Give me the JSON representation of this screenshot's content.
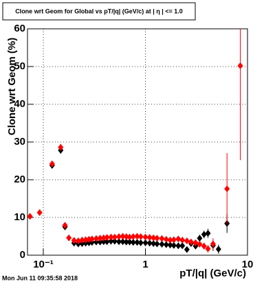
{
  "chart_data": {
    "type": "scatter",
    "title": "Clone wrt Geom for Global vs pT/|q| (GeV/c) at | η | <= 1.0",
    "x_label": "pT/|q| (GeV/c)",
    "y_label": "Clone wrt Geom (%)",
    "timestamp": "Mon Jun 11 09:35:58 2018",
    "x": [
      0.074,
      0.092,
      0.122,
      0.148,
      0.163,
      0.178,
      0.2,
      0.22,
      0.24,
      0.26,
      0.28,
      0.3,
      0.33,
      0.36,
      0.39,
      0.42,
      0.46,
      0.5,
      0.55,
      0.6,
      0.65,
      0.7,
      0.76,
      0.83,
      0.9,
      1.0,
      1.1,
      1.2,
      1.3,
      1.45,
      1.6,
      1.75,
      1.9,
      2.1,
      2.3,
      2.55,
      2.8,
      3.1,
      3.4,
      3.75,
      4.1,
      4.6,
      5.2,
      6.3,
      8.5
    ],
    "series": [
      {
        "color": "#000000",
        "values": [
          null,
          null,
          23.8,
          27.8,
          7.5,
          null,
          3.2,
          3.0,
          3.1,
          3.2,
          3.3,
          3.4,
          3.5,
          3.5,
          3.6,
          3.6,
          3.7,
          3.7,
          3.6,
          3.6,
          3.5,
          3.5,
          3.4,
          3.4,
          3.3,
          3.3,
          3.2,
          3.1,
          3.0,
          2.9,
          2.8,
          2.7,
          2.6,
          2.5,
          2.5,
          1.5,
          3.1,
          2.4,
          4.5,
          5.5,
          5.8,
          2.6,
          1.6,
          8.4,
          null
        ],
        "errors": [
          null,
          null,
          0.8,
          0.9,
          0.6,
          null,
          0.3,
          0.3,
          0.3,
          0.3,
          0.3,
          0.3,
          0.3,
          0.3,
          0.3,
          0.3,
          0.3,
          0.3,
          0.3,
          0.3,
          0.3,
          0.3,
          0.3,
          0.3,
          0.3,
          0.3,
          0.3,
          0.3,
          0.3,
          0.3,
          0.3,
          0.3,
          0.3,
          0.3,
          0.3,
          0.5,
          0.6,
          0.7,
          0.9,
          1.0,
          1.2,
          1.5,
          1.2,
          2.5,
          null
        ]
      },
      {
        "color": "#ff0000",
        "values": [
          10.3,
          11.3,
          24.2,
          28.6,
          7.9,
          4.6,
          3.9,
          3.8,
          4.0,
          4.1,
          4.2,
          4.3,
          4.4,
          4.5,
          4.6,
          4.7,
          4.8,
          4.8,
          4.9,
          5.0,
          4.9,
          4.8,
          4.9,
          5.0,
          4.9,
          4.8,
          4.7,
          4.6,
          4.5,
          4.4,
          4.2,
          4.0,
          4.1,
          4.3,
          4.0,
          3.8,
          3.5,
          3.3,
          2.9,
          2.4,
          1.7,
          3.0,
          null,
          17.6,
          50.2
        ],
        "errors": [
          0.6,
          0.6,
          0.8,
          0.9,
          0.6,
          0.4,
          0.3,
          0.3,
          0.3,
          0.3,
          0.3,
          0.3,
          0.3,
          0.3,
          0.3,
          0.3,
          0.3,
          0.3,
          0.3,
          0.3,
          0.3,
          0.3,
          0.3,
          0.3,
          0.3,
          0.3,
          0.3,
          0.3,
          0.3,
          0.3,
          0.3,
          0.3,
          0.3,
          0.3,
          0.3,
          0.5,
          0.6,
          0.7,
          0.8,
          0.9,
          1.0,
          1.5,
          null,
          9.5,
          25
        ]
      }
    ],
    "xlim": [
      0.07,
      10
    ],
    "x_log": true,
    "xticks": [
      {
        "value": 0.1,
        "label": "10⁻¹"
      },
      1,
      10
    ],
    "ylim": [
      0,
      60
    ],
    "yticks": [
      0,
      10,
      20,
      30,
      40,
      50,
      60
    ],
    "grid": true
  }
}
